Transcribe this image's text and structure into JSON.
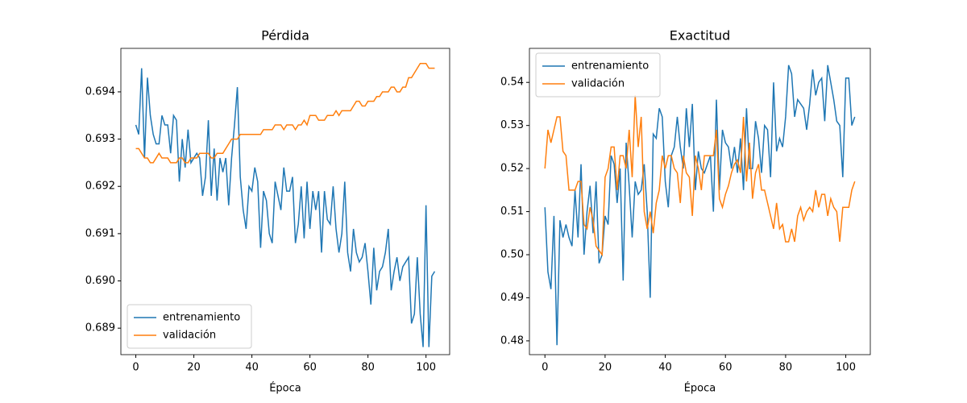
{
  "chart_data": [
    {
      "type": "line",
      "title": "Pérdida",
      "xlabel": "Época",
      "x": [
        0,
        1,
        2,
        3,
        4,
        5,
        6,
        7,
        8,
        9,
        10,
        11,
        12,
        13,
        14,
        15,
        16,
        17,
        18,
        19,
        20,
        21,
        22,
        23,
        24,
        25,
        26,
        27,
        28,
        29,
        30,
        31,
        32,
        33,
        34,
        35,
        36,
        37,
        38,
        39,
        40,
        41,
        42,
        43,
        44,
        45,
        46,
        47,
        48,
        49,
        50,
        51,
        52,
        53,
        54,
        55,
        56,
        57,
        58,
        59,
        60,
        61,
        62,
        63,
        64,
        65,
        66,
        67,
        68,
        69,
        70,
        71,
        72,
        73,
        74,
        75,
        76,
        77,
        78,
        79,
        80,
        81,
        82,
        83,
        84,
        85,
        86,
        87,
        88,
        89,
        90,
        91,
        92,
        93,
        94,
        95,
        96,
        97,
        98,
        99,
        100,
        101,
        102,
        103
      ],
      "series": [
        {
          "name": "entrenamiento",
          "color": "#1f77b4",
          "values": [
            0.6933,
            0.6931,
            0.6945,
            0.6926,
            0.6943,
            0.6935,
            0.6931,
            0.6929,
            0.6929,
            0.6935,
            0.6933,
            0.6933,
            0.6927,
            0.6935,
            0.6934,
            0.6921,
            0.693,
            0.6924,
            0.6932,
            0.6925,
            0.6926,
            0.6927,
            0.6926,
            0.6918,
            0.6922,
            0.6934,
            0.6918,
            0.6928,
            0.6917,
            0.6926,
            0.6923,
            0.6926,
            0.6916,
            0.6926,
            0.6933,
            0.6941,
            0.6922,
            0.6915,
            0.6911,
            0.692,
            0.6919,
            0.6924,
            0.6921,
            0.6907,
            0.6919,
            0.6917,
            0.691,
            0.6908,
            0.6921,
            0.6918,
            0.6915,
            0.6924,
            0.6919,
            0.6919,
            0.6922,
            0.6908,
            0.6912,
            0.692,
            0.6909,
            0.6921,
            0.6911,
            0.6919,
            0.6915,
            0.6919,
            0.6906,
            0.6919,
            0.6913,
            0.6912,
            0.692,
            0.6911,
            0.6906,
            0.691,
            0.6921,
            0.6906,
            0.6902,
            0.6911,
            0.6906,
            0.6904,
            0.6905,
            0.6908,
            0.6902,
            0.6895,
            0.6907,
            0.6898,
            0.6902,
            0.6903,
            0.6906,
            0.6911,
            0.6898,
            0.6902,
            0.6905,
            0.69,
            0.6903,
            0.6904,
            0.6905,
            0.6891,
            0.6893,
            0.6905,
            0.6893,
            0.6886,
            0.6916,
            0.6886,
            0.6901,
            0.6902
          ]
        },
        {
          "name": "validación",
          "color": "#ff7f0e",
          "values": [
            0.6928,
            0.6928,
            0.6927,
            0.6926,
            0.6926,
            0.6925,
            0.6925,
            0.6926,
            0.6927,
            0.6926,
            0.6926,
            0.6926,
            0.6925,
            0.6925,
            0.6925,
            0.6926,
            0.6926,
            0.6925,
            0.6925,
            0.6926,
            0.6926,
            0.6926,
            0.6927,
            0.6927,
            0.6927,
            0.6927,
            0.6926,
            0.6926,
            0.6927,
            0.6927,
            0.6927,
            0.6928,
            0.6929,
            0.693,
            0.693,
            0.693,
            0.6931,
            0.6931,
            0.6931,
            0.6931,
            0.6931,
            0.6931,
            0.6931,
            0.6931,
            0.6932,
            0.6932,
            0.6932,
            0.6932,
            0.6933,
            0.6933,
            0.6933,
            0.6932,
            0.6933,
            0.6933,
            0.6933,
            0.6932,
            0.6933,
            0.6933,
            0.6934,
            0.6933,
            0.6935,
            0.6935,
            0.6935,
            0.6934,
            0.6934,
            0.6934,
            0.6935,
            0.6935,
            0.6935,
            0.6936,
            0.6935,
            0.6936,
            0.6936,
            0.6936,
            0.6936,
            0.6937,
            0.6938,
            0.6938,
            0.6937,
            0.6937,
            0.6938,
            0.6938,
            0.6938,
            0.6939,
            0.6939,
            0.694,
            0.694,
            0.694,
            0.6941,
            0.6941,
            0.694,
            0.694,
            0.6941,
            0.6941,
            0.6943,
            0.6943,
            0.6944,
            0.6945,
            0.6946,
            0.6946,
            0.6946,
            0.6945,
            0.6945,
            0.6945
          ]
        }
      ],
      "xlim": [
        -5.15,
        108.15
      ],
      "ylim": [
        0.68844,
        0.69492
      ],
      "xticks": [
        0,
        20,
        40,
        60,
        80,
        100
      ],
      "yticks": [
        0.689,
        {
          "value": 0.69,
          "label": "0.690"
        },
        0.691,
        0.692,
        0.693,
        0.694
      ],
      "legend": "lower left"
    },
    {
      "type": "line",
      "title": "Exactitud",
      "xlabel": "Época",
      "x": [
        0,
        1,
        2,
        3,
        4,
        5,
        6,
        7,
        8,
        9,
        10,
        11,
        12,
        13,
        14,
        15,
        16,
        17,
        18,
        19,
        20,
        21,
        22,
        23,
        24,
        25,
        26,
        27,
        28,
        29,
        30,
        31,
        32,
        33,
        34,
        35,
        36,
        37,
        38,
        39,
        40,
        41,
        42,
        43,
        44,
        45,
        46,
        47,
        48,
        49,
        50,
        51,
        52,
        53,
        54,
        55,
        56,
        57,
        58,
        59,
        60,
        61,
        62,
        63,
        64,
        65,
        66,
        67,
        68,
        69,
        70,
        71,
        72,
        73,
        74,
        75,
        76,
        77,
        78,
        79,
        80,
        81,
        82,
        83,
        84,
        85,
        86,
        87,
        88,
        89,
        90,
        91,
        92,
        93,
        94,
        95,
        96,
        97,
        98,
        99,
        100,
        101,
        102,
        103
      ],
      "series": [
        {
          "name": "entrenamiento",
          "color": "#1f77b4",
          "values": [
            0.511,
            0.496,
            0.492,
            0.509,
            0.479,
            0.508,
            0.504,
            0.507,
            0.504,
            0.502,
            0.515,
            0.504,
            0.521,
            0.5,
            0.51,
            0.516,
            0.505,
            0.517,
            0.498,
            0.5,
            0.509,
            0.507,
            0.523,
            0.521,
            0.512,
            0.52,
            0.494,
            0.526,
            0.516,
            0.504,
            0.517,
            0.514,
            0.515,
            0.521,
            0.51,
            0.49,
            0.528,
            0.527,
            0.534,
            0.532,
            0.517,
            0.511,
            0.523,
            0.525,
            0.532,
            0.525,
            0.52,
            0.534,
            0.525,
            0.535,
            0.515,
            0.524,
            0.52,
            0.519,
            0.521,
            0.523,
            0.51,
            0.536,
            0.515,
            0.529,
            0.526,
            0.525,
            0.52,
            0.525,
            0.519,
            0.527,
            0.515,
            0.534,
            0.52,
            0.52,
            0.531,
            0.527,
            0.519,
            0.53,
            0.529,
            0.518,
            0.54,
            0.524,
            0.527,
            0.525,
            0.532,
            0.544,
            0.542,
            0.532,
            0.536,
            0.535,
            0.534,
            0.529,
            0.535,
            0.543,
            0.537,
            0.54,
            0.541,
            0.531,
            0.544,
            0.54,
            0.536,
            0.531,
            0.53,
            0.518,
            0.541,
            0.541,
            0.53,
            0.532
          ]
        },
        {
          "name": "validación",
          "color": "#ff7f0e",
          "values": [
            0.52,
            0.529,
            0.526,
            0.529,
            0.532,
            0.532,
            0.524,
            0.523,
            0.515,
            0.515,
            0.515,
            0.517,
            0.517,
            0.507,
            0.506,
            0.511,
            0.508,
            0.502,
            0.501,
            0.5,
            0.518,
            0.52,
            0.525,
            0.525,
            0.515,
            0.523,
            0.523,
            0.52,
            0.529,
            0.518,
            0.537,
            0.525,
            0.532,
            0.51,
            0.506,
            0.51,
            0.505,
            0.512,
            0.515,
            0.523,
            0.52,
            0.523,
            0.523,
            0.52,
            0.519,
            0.512,
            0.523,
            0.519,
            0.518,
            0.509,
            0.523,
            0.52,
            0.515,
            0.523,
            0.523,
            0.523,
            0.523,
            0.529,
            0.513,
            0.511,
            0.514,
            0.516,
            0.519,
            0.521,
            0.522,
            0.519,
            0.532,
            0.517,
            0.526,
            0.513,
            0.519,
            0.521,
            0.515,
            0.515,
            0.512,
            0.509,
            0.506,
            0.512,
            0.506,
            0.507,
            0.503,
            0.503,
            0.506,
            0.503,
            0.509,
            0.511,
            0.508,
            0.51,
            0.511,
            0.51,
            0.515,
            0.511,
            0.514,
            0.514,
            0.509,
            0.513,
            0.511,
            0.51,
            0.503,
            0.511,
            0.511,
            0.511,
            0.515,
            0.517
          ]
        }
      ],
      "xlim": [
        -5.15,
        108.15
      ],
      "ylim": [
        0.4768,
        0.5479
      ],
      "xticks": [
        0,
        20,
        40,
        60,
        80,
        100
      ],
      "yticks": [
        0.48,
        0.49,
        {
          "value": 0.5,
          "label": "0.50"
        },
        0.51,
        0.52,
        0.53,
        0.54
      ],
      "legend": "upper left"
    }
  ]
}
